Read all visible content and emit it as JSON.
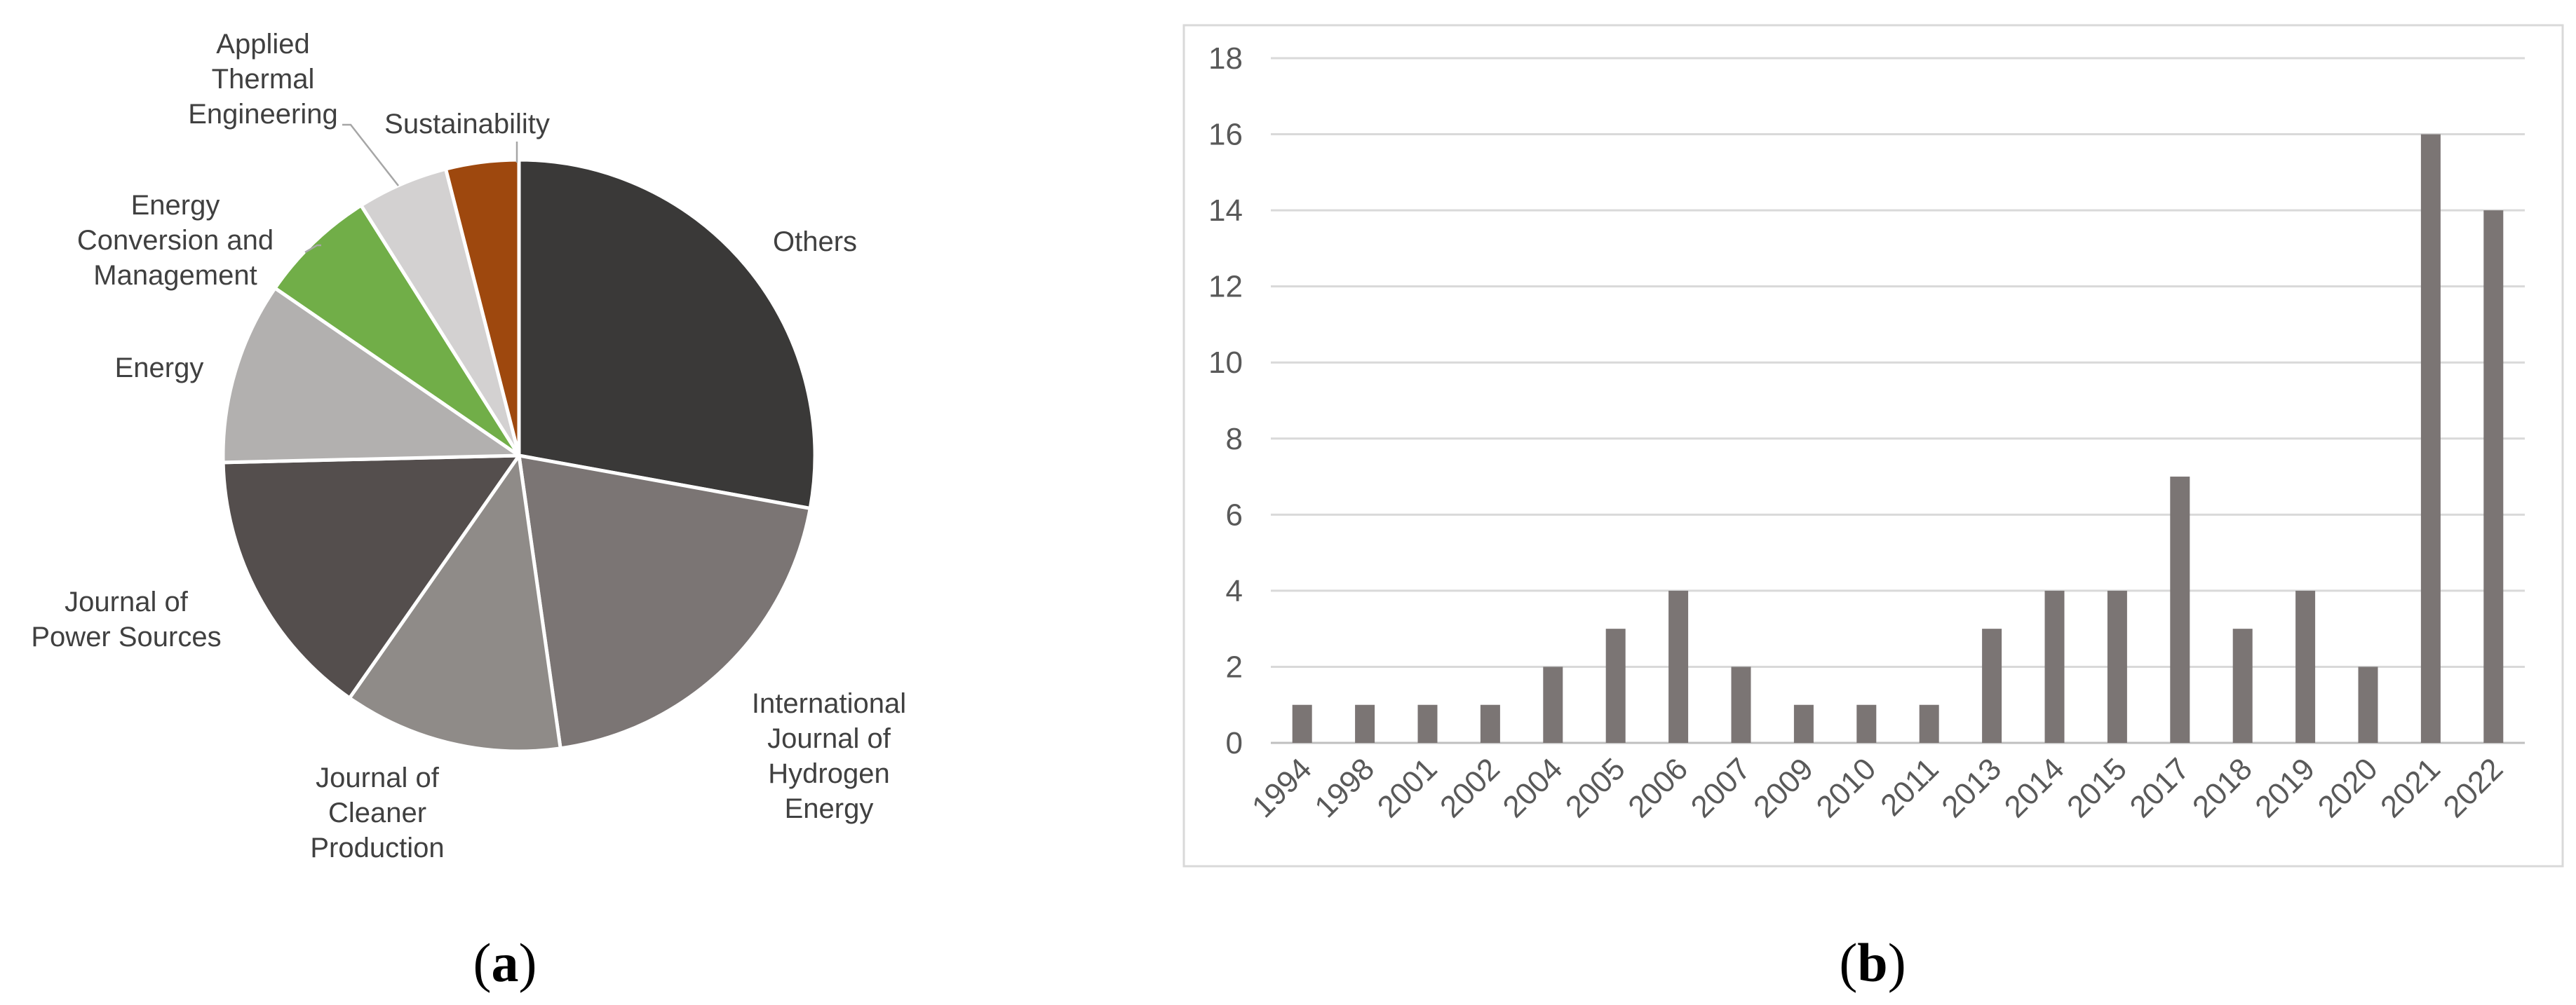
{
  "chart_data": [
    {
      "type": "pie",
      "slices": [
        {
          "label": "Others",
          "value": 28,
          "color": "#3a3938"
        },
        {
          "label": "International Journal of Hydrogen Energy",
          "value": 20,
          "color": "#7b7574"
        },
        {
          "label": "Journal of Cleaner Production",
          "value": 12,
          "color": "#8f8b88"
        },
        {
          "label": "Journal of Power Sources",
          "value": 15,
          "color": "#544e4d"
        },
        {
          "label": "Energy",
          "value": 10,
          "color": "#b2b0af"
        },
        {
          "label": "Energy Conversion and Management",
          "value": 6.5,
          "color": "#71ae48"
        },
        {
          "label": "Applied Thermal Engineering",
          "value": 5,
          "color": "#d3d1d1"
        },
        {
          "label": "Sustainability",
          "value": 4,
          "color": "#9e480e"
        }
      ],
      "caption_letter": "a",
      "caption_open": "(",
      "caption_close": ")"
    },
    {
      "type": "bar",
      "categories": [
        "1994",
        "1998",
        "2001",
        "2002",
        "2004",
        "2005",
        "2006",
        "2007",
        "2009",
        "2010",
        "2011",
        "2013",
        "2014",
        "2015",
        "2017",
        "2018",
        "2019",
        "2020",
        "2021",
        "2022"
      ],
      "values": [
        1,
        1,
        1,
        1,
        2,
        3,
        4,
        2,
        1,
        1,
        1,
        3,
        4,
        4,
        7,
        3,
        4,
        2,
        16,
        14
      ],
      "ylim": [
        0,
        18
      ],
      "yticks": [
        0,
        2,
        4,
        6,
        8,
        10,
        12,
        14,
        16,
        18
      ],
      "grid": true,
      "bar_color": "#7b7574",
      "caption_letter": "b",
      "caption_open": "(",
      "caption_close": ")"
    }
  ]
}
